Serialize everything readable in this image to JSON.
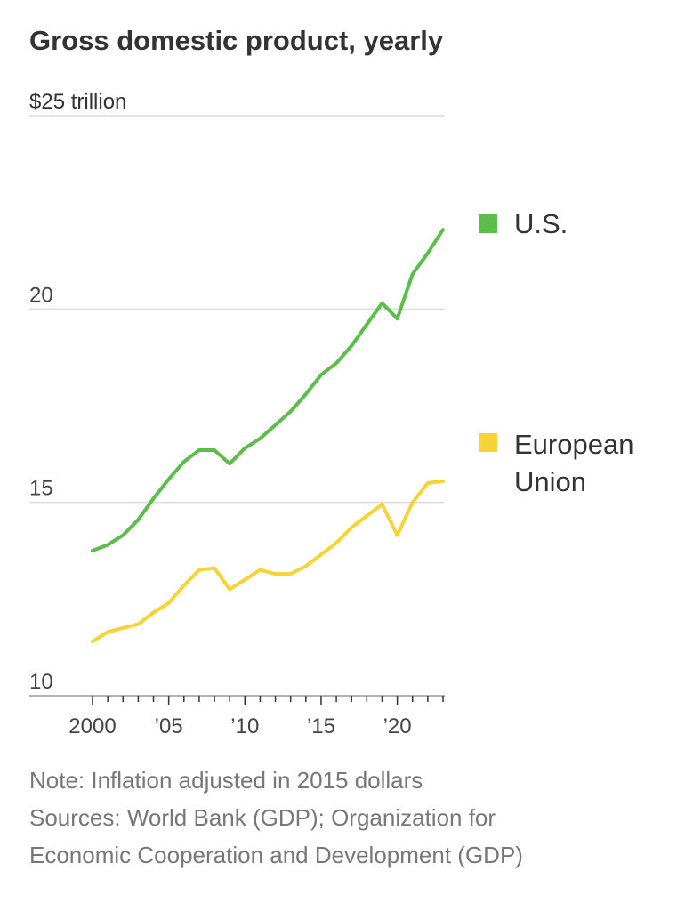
{
  "chart_data": {
    "type": "line",
    "title": "Gross domestic product, yearly",
    "y_unit_label": "$25 trillion",
    "ylim": [
      10,
      25
    ],
    "xlim": [
      2000,
      2023
    ],
    "y_ticks": [
      {
        "value": 25,
        "label": "$25 trillion"
      },
      {
        "value": 20,
        "label": "20"
      },
      {
        "value": 15,
        "label": "15"
      },
      {
        "value": 10,
        "label": "10"
      }
    ],
    "x_ticks": [
      {
        "value": 2000,
        "label": "2000"
      },
      {
        "value": 2005,
        "label": "’05"
      },
      {
        "value": 2010,
        "label": "’10"
      },
      {
        "value": 2015,
        "label": "’15"
      },
      {
        "value": 2020,
        "label": "’20"
      }
    ],
    "grid": true,
    "legend_placement": "right, beside line ends",
    "series": [
      {
        "name": "U.S.",
        "legend_lines": [
          "U.S."
        ],
        "color": "#5bbd4a",
        "x": [
          2000,
          2001,
          2002,
          2003,
          2004,
          2005,
          2006,
          2007,
          2008,
          2009,
          2010,
          2011,
          2012,
          2013,
          2014,
          2015,
          2016,
          2017,
          2018,
          2019,
          2020,
          2021,
          2022,
          2023
        ],
        "y": [
          13.75,
          13.9,
          14.15,
          14.55,
          15.1,
          15.6,
          16.05,
          16.35,
          16.35,
          16.0,
          16.4,
          16.65,
          17.0,
          17.35,
          17.8,
          18.3,
          18.6,
          19.05,
          19.6,
          20.15,
          19.75,
          20.9,
          21.45,
          22.05
        ]
      },
      {
        "name": "European Union",
        "legend_lines": [
          "European",
          "Union"
        ],
        "color": "#f7d336",
        "x": [
          2000,
          2001,
          2002,
          2003,
          2004,
          2005,
          2006,
          2007,
          2008,
          2009,
          2010,
          2011,
          2012,
          2013,
          2014,
          2015,
          2016,
          2017,
          2018,
          2019,
          2020,
          2021,
          2022,
          2023
        ],
        "y": [
          11.4,
          11.65,
          11.75,
          11.85,
          12.15,
          12.4,
          12.85,
          13.25,
          13.3,
          12.75,
          13.0,
          13.25,
          13.15,
          13.15,
          13.35,
          13.65,
          13.95,
          14.35,
          14.65,
          14.95,
          14.15,
          15.0,
          15.5,
          15.55
        ]
      }
    ]
  },
  "footer": {
    "note": "Note: Inflation adjusted in 2015 dollars",
    "sources_line1": "Sources: World Bank (GDP); Organization for",
    "sources_line2": "Economic Cooperation and Development (GDP)"
  }
}
